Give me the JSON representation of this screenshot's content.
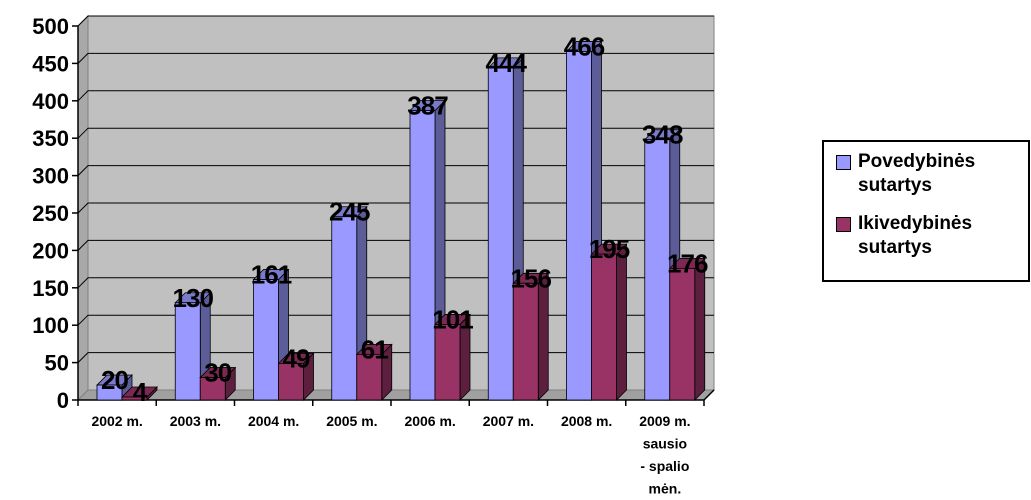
{
  "chart_data": {
    "type": "bar",
    "categories": [
      "2002 m.",
      "2003 m.",
      "2004 m.",
      "2005 m.",
      "2006 m.",
      "2007 m.",
      "2008 m.",
      "2009 m. sausio - spalio mėn."
    ],
    "category_lines": [
      [
        "2002 m."
      ],
      [
        "2003 m."
      ],
      [
        "2004 m."
      ],
      [
        "2005 m."
      ],
      [
        "2006 m."
      ],
      [
        "2007 m."
      ],
      [
        "2008 m."
      ],
      [
        "2009 m.",
        "sausio",
        "- spalio",
        "mėn."
      ]
    ],
    "series": [
      {
        "name": "Povedybinės sutartys",
        "name_lines": [
          "Povedybinės",
          "sutartys"
        ],
        "color": "#9999ff",
        "values": [
          20,
          130,
          161,
          245,
          387,
          444,
          466,
          348
        ]
      },
      {
        "name": "Ikivedybinės sutartys",
        "name_lines": [
          "Ikivedybinės",
          "sutartys"
        ],
        "color": "#993366",
        "values": [
          4,
          30,
          49,
          61,
          101,
          156,
          195,
          176
        ]
      }
    ],
    "y_ticks": [
      0,
      50,
      100,
      150,
      200,
      250,
      300,
      350,
      400,
      450,
      500
    ],
    "ylim": [
      0,
      500
    ],
    "grid": true,
    "plot_background": "#c0c0c0",
    "legend_position": "right",
    "data_labels": true
  }
}
